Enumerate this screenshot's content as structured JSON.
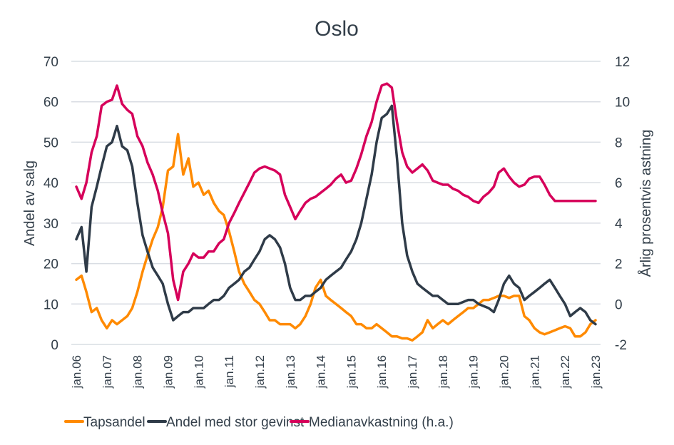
{
  "chart_data": {
    "type": "line",
    "title": "Oslo",
    "ylabel": "Andel av salg",
    "y2label": "Årlig prosentvis astning",
    "ylim": [
      0,
      70
    ],
    "y2lim": [
      -2,
      12
    ],
    "yticks": [
      "0",
      "10",
      "20",
      "30",
      "40",
      "50",
      "60",
      "70"
    ],
    "y2ticks": [
      "-2",
      "0",
      "2",
      "4",
      "6",
      "8",
      "10",
      "12"
    ],
    "xlim": [
      2006,
      2023
    ],
    "xticks": [
      "jan.06",
      "jan.07",
      "jan.08",
      "jan.09",
      "jan.10",
      "jan.11",
      "jan.12",
      "jan.13",
      "jan.14",
      "jan.15",
      "jan.16",
      "jan.17",
      "jan.18",
      "jan.19",
      "jan.20",
      "jan.21",
      "jan.22",
      "jan.23"
    ],
    "grid": true,
    "legend_position": "bottom",
    "x": [
      2006.0,
      2006.17,
      2006.33,
      2006.5,
      2006.67,
      2006.83,
      2007.0,
      2007.17,
      2007.33,
      2007.5,
      2007.67,
      2007.83,
      2008.0,
      2008.17,
      2008.33,
      2008.5,
      2008.67,
      2008.83,
      2009.0,
      2009.17,
      2009.33,
      2009.5,
      2009.67,
      2009.83,
      2010.0,
      2010.17,
      2010.33,
      2010.5,
      2010.67,
      2010.83,
      2011.0,
      2011.17,
      2011.33,
      2011.5,
      2011.67,
      2011.83,
      2012.0,
      2012.17,
      2012.33,
      2012.5,
      2012.67,
      2012.83,
      2013.0,
      2013.17,
      2013.33,
      2013.5,
      2013.67,
      2013.83,
      2014.0,
      2014.17,
      2014.33,
      2014.5,
      2014.67,
      2014.83,
      2015.0,
      2015.17,
      2015.33,
      2015.5,
      2015.67,
      2015.83,
      2016.0,
      2016.17,
      2016.33,
      2016.5,
      2016.67,
      2016.83,
      2017.0,
      2017.17,
      2017.33,
      2017.5,
      2017.67,
      2017.83,
      2018.0,
      2018.17,
      2018.33,
      2018.5,
      2018.67,
      2018.83,
      2019.0,
      2019.17,
      2019.33,
      2019.5,
      2019.67,
      2019.83,
      2020.0,
      2020.17,
      2020.33,
      2020.5,
      2020.67,
      2020.83,
      2021.0,
      2021.17,
      2021.33,
      2021.5,
      2021.67,
      2021.83,
      2022.0,
      2022.17,
      2022.33,
      2022.5,
      2022.67,
      2022.83,
      2023.0
    ],
    "series": [
      {
        "name": "Tapsandel",
        "axis": "left",
        "color": "#ff8a00",
        "values": [
          16,
          17,
          13,
          8,
          9,
          6,
          4,
          6,
          5,
          6,
          7,
          9,
          13,
          18,
          22,
          26,
          29,
          34,
          43,
          44,
          52,
          42,
          46,
          39,
          40,
          37,
          38,
          35,
          33,
          32,
          28,
          23,
          18,
          15,
          13,
          11,
          10,
          8,
          6,
          6,
          5,
          5,
          5,
          4,
          5,
          7,
          10,
          14,
          16,
          12,
          11,
          10,
          9,
          8,
          7,
          5,
          5,
          4,
          4,
          5,
          4,
          3,
          2,
          2,
          1.5,
          1.5,
          1,
          2,
          3,
          6,
          4,
          5,
          6,
          5,
          6,
          7,
          8,
          9,
          9,
          10,
          11,
          11,
          11.5,
          12,
          12,
          11.5,
          12,
          12,
          7,
          6,
          4,
          3,
          2.5,
          3,
          3.5,
          4,
          4.5,
          4,
          2,
          2,
          3,
          5,
          6
        ]
      },
      {
        "name": "Andel med stor gevinst",
        "axis": "left",
        "color": "#2f3b48",
        "values": [
          26,
          29,
          18,
          34,
          39,
          44,
          49,
          50,
          54,
          49,
          48,
          44,
          35,
          27,
          23,
          19,
          17,
          15,
          10,
          6,
          7,
          8,
          8,
          9,
          9,
          9,
          10,
          11,
          11,
          12,
          14,
          15,
          16,
          18,
          19,
          21,
          23,
          26,
          27,
          26,
          24,
          20,
          14,
          11,
          11,
          12,
          12,
          13,
          14,
          16,
          17,
          18,
          19,
          21,
          23,
          26,
          30,
          36,
          42,
          50,
          56,
          57,
          59,
          46,
          30,
          22,
          18,
          15,
          14,
          13,
          12,
          12,
          11,
          10,
          10,
          10,
          10.5,
          11,
          11,
          10,
          9.5,
          9,
          8,
          11,
          15,
          17,
          15,
          14,
          11,
          12,
          13,
          14,
          15,
          16,
          14,
          12,
          10,
          7,
          8,
          9,
          8,
          6,
          5
        ]
      }
    ],
    "series2": [
      {
        "name": "Medianavkastning (h.a.)",
        "axis": "right",
        "color": "#d6005a",
        "values": [
          5.8,
          5.2,
          6.0,
          7.5,
          8.3,
          9.8,
          10.0,
          10.1,
          10.8,
          9.9,
          9.6,
          9.4,
          8.3,
          7.8,
          7.0,
          6.4,
          5.6,
          4.5,
          3.5,
          1.2,
          0.2,
          1.6,
          2.0,
          2.5,
          2.3,
          2.3,
          2.6,
          2.6,
          3.0,
          3.2,
          4.0,
          4.5,
          5.0,
          5.5,
          6.0,
          6.5,
          6.7,
          6.8,
          6.7,
          6.6,
          6.4,
          5.4,
          4.8,
          4.2,
          4.6,
          5.0,
          5.2,
          5.3,
          5.5,
          5.7,
          5.9,
          6.2,
          6.4,
          6.0,
          6.1,
          6.7,
          7.4,
          8.3,
          9.0,
          10.0,
          10.8,
          10.9,
          10.7,
          9.0,
          7.5,
          6.8,
          6.5,
          6.7,
          6.9,
          6.6,
          6.1,
          6.0,
          5.9,
          5.9,
          5.7,
          5.6,
          5.4,
          5.3,
          5.1,
          5.0,
          5.3,
          5.5,
          5.8,
          6.5,
          6.7,
          6.3,
          6.0,
          5.8,
          5.9,
          6.2,
          6.3,
          6.3,
          5.9,
          5.4,
          5.1,
          5.1,
          5.1,
          5.1,
          5.1,
          5.1,
          5.1,
          5.1,
          5.1
        ]
      }
    ]
  },
  "legend": [
    {
      "label": "Tapsandel",
      "color": "#ff8a00"
    },
    {
      "label": "Andel med stor gevinst",
      "color": "#2f3b48"
    },
    {
      "label": "Medianavkastning (h.a.)",
      "color": "#d6005a"
    }
  ]
}
